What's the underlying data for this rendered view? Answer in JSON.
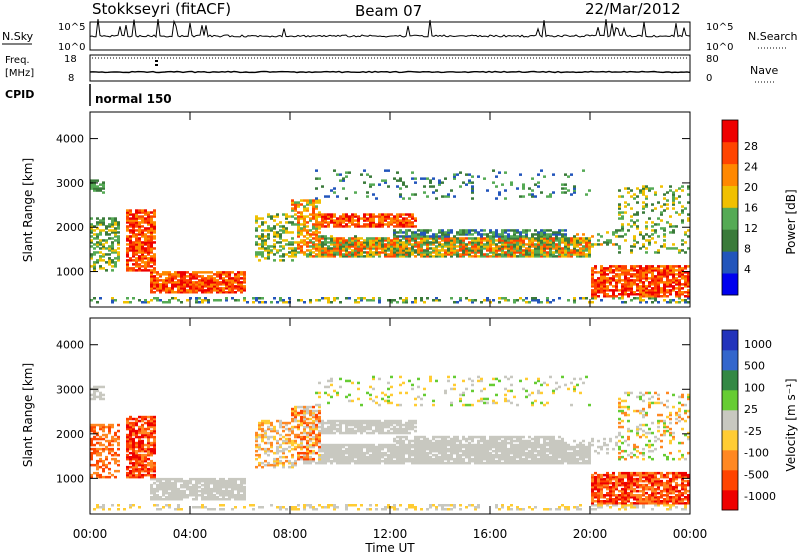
{
  "header": {
    "title": "Stokkseyri (fitACF)",
    "beam": "Beam 07",
    "date": "22/Mar/2012"
  },
  "top_panels": {
    "nsky_label": "N.Sky",
    "nsearch_label": "N.Search",
    "nsky_ticks": [
      "10^5",
      "10^0"
    ],
    "nsearch_ticks": [
      "10^5",
      "10^0"
    ],
    "freq_label_1": "Freq.",
    "freq_label_2": "[MHz]",
    "freq_ticks": [
      "18",
      "8"
    ],
    "nave_label": "Nave",
    "nave_ticks": [
      "80",
      "0"
    ],
    "cpid_label": "CPID",
    "cpid_value": "normal 150"
  },
  "chart_data": [
    {
      "type": "heatmap",
      "name": "power",
      "ylabel": "Slant Range [km]",
      "ylim": [
        200,
        4600
      ],
      "yticks": [
        "1000",
        "2000",
        "3000",
        "4000"
      ],
      "colorbar_label": "Power [dB]",
      "colorbar_ticks": [
        "4",
        "8",
        "12",
        "16",
        "20",
        "24",
        "28"
      ],
      "colors": [
        "#0000ee",
        "#2255bb",
        "#3a7a3a",
        "#55aa55",
        "#f0c000",
        "#ff8800",
        "#ff4400",
        "#ee0000"
      ]
    },
    {
      "type": "heatmap",
      "name": "velocity",
      "ylabel": "Slant Range [km]",
      "ylim": [
        200,
        4600
      ],
      "yticks": [
        "1000",
        "2000",
        "3000",
        "4000"
      ],
      "colorbar_label": "Velocity [m s⁻¹]",
      "colorbar_ticks": [
        "1000",
        "500",
        "100",
        "25",
        "-25",
        "-100",
        "-500",
        "-1000"
      ],
      "colors": [
        "#2233bb",
        "#3366cc",
        "#338844",
        "#66cc33",
        "#c8c8c0",
        "#ffcc33",
        "#ff8822",
        "#ff4400",
        "#ee0000"
      ]
    }
  ],
  "x_axis": {
    "ticks": [
      "00:00",
      "04:00",
      "08:00",
      "12:00",
      "16:00",
      "20:00",
      "00:00"
    ],
    "label": "Time UT"
  }
}
